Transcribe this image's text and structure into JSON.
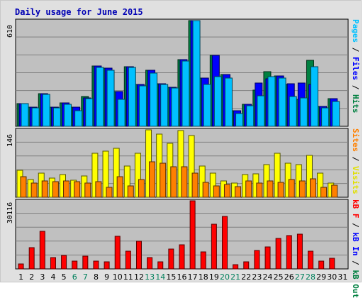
{
  "title": "Daily usage for June 2015",
  "colors": {
    "background": "#e0e0e0",
    "panel": "#c0c0c0",
    "title": "#0000b4",
    "pages": "#00c0ff",
    "files": "#0000ff",
    "hits": "#008040",
    "visits": "#ffff00",
    "sites": "#ff8000",
    "kb_in": "#0000ff",
    "kb_out": "#008040",
    "kb_f": "#ff0000",
    "weekend_day": "#00805c",
    "weekday": "#000000"
  },
  "right_labels": {
    "top": [
      {
        "text": "Pages",
        "color": "#00c0ff"
      },
      {
        "text": " / ",
        "color": "#000000"
      },
      {
        "text": "Files",
        "color": "#0000ff"
      },
      {
        "text": " / ",
        "color": "#000000"
      },
      {
        "text": "Hits",
        "color": "#008040"
      }
    ],
    "middle": [
      {
        "text": "Sites",
        "color": "#ff8000"
      },
      {
        "text": " / ",
        "color": "#000000"
      },
      {
        "text": "Visits",
        "color": "#e0e000"
      }
    ],
    "bottom": [
      {
        "text": "kB F",
        "color": "#ff0000"
      },
      {
        "text": " / ",
        "color": "#000000"
      },
      {
        "text": "kB In",
        "color": "#0000ff"
      },
      {
        "text": " / ",
        "color": "#000000"
      },
      {
        "text": "kB Out",
        "color": "#008040"
      }
    ]
  },
  "chart_data": {
    "type": "bar",
    "days": [
      "1",
      "2",
      "3",
      "4",
      "5",
      "6",
      "7",
      "8",
      "9",
      "10",
      "11",
      "12",
      "13",
      "14",
      "15",
      "16",
      "17",
      "18",
      "19",
      "20",
      "21",
      "22",
      "23",
      "24",
      "25",
      "26",
      "27",
      "28",
      "29",
      "30",
      "31"
    ],
    "weekend_days": [
      "6",
      "7",
      "13",
      "14",
      "20",
      "21",
      "27",
      "28"
    ],
    "panels": [
      {
        "name": "hits",
        "ymax_label": "610",
        "ymax": 610,
        "series": [
          {
            "name": "Hits",
            "color": "#008040",
            "values": [
              130,
              110,
              190,
              110,
              135,
              110,
              170,
              350,
              335,
              200,
              345,
              240,
              325,
              245,
              225,
              385,
              610,
              280,
              410,
              300,
              90,
              125,
              210,
              315,
              290,
              240,
              155,
              380,
              115,
              160,
              null
            ]
          },
          {
            "name": "Files",
            "color": "#0000ff",
            "values": [
              130,
              110,
              190,
              110,
              135,
              110,
              165,
              350,
              335,
              200,
              345,
              240,
              325,
              245,
              225,
              385,
              610,
              280,
              410,
              300,
              90,
              125,
              250,
              275,
              290,
              245,
              250,
              240,
              115,
              160,
              null
            ]
          },
          {
            "name": "Pages",
            "color": "#00c0ff",
            "values": [
              130,
              105,
              185,
              105,
              125,
              90,
              160,
              340,
              325,
              155,
              340,
              235,
              305,
              240,
              220,
              375,
              610,
              240,
              285,
              280,
              75,
              120,
              175,
              285,
              280,
              170,
              165,
              345,
              105,
              145,
              null
            ]
          }
        ]
      },
      {
        "name": "visits",
        "ymax_label": "146",
        "ymax": 146,
        "series": [
          {
            "name": "Visits",
            "color": "#ffff00",
            "values": [
              58,
              38,
              53,
              42,
              49,
              37,
              46,
              96,
              100,
              106,
              67,
              96,
              146,
              137,
              117,
              144,
              134,
              68,
              53,
              36,
              31,
              49,
              51,
              71,
              96,
              74,
              70,
              91,
              52,
              31,
              null
            ]
          },
          {
            "name": "Sites",
            "color": "#ff8000",
            "values": [
              44,
              30,
              35,
              34,
              36,
              34,
              31,
              34,
              22,
              44,
              24,
              39,
              77,
              74,
              66,
              66,
              53,
              33,
              24,
              28,
              23,
              35,
              30,
              36,
              33,
              38,
              36,
              40,
              22,
              26,
              null
            ]
          }
        ]
      },
      {
        "name": "kbytes",
        "ymax_label": "30116",
        "ymax": 30116,
        "series": [
          {
            "name": "kB F",
            "color": "#ff0000",
            "values": [
              2200,
              9400,
              16500,
              5100,
              6100,
              3300,
              5500,
              3500,
              3000,
              14500,
              7900,
              12200,
              5100,
              3100,
              8800,
              10600,
              30116,
              7500,
              19700,
              23100,
              1800,
              3000,
              8300,
              9600,
              13500,
              14700,
              15500,
              7900,
              3400,
              4700,
              null
            ]
          }
        ]
      }
    ]
  }
}
